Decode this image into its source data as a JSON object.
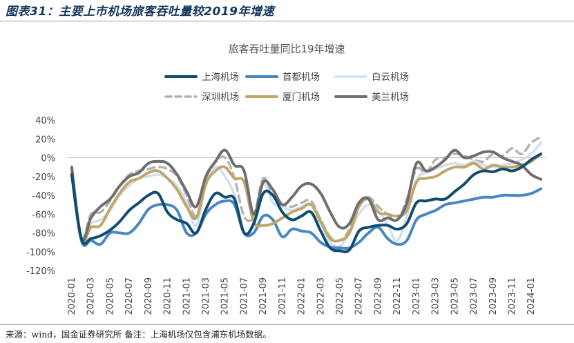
{
  "figure_title": "图表31：主要上市机场旅客吞吐量较2019年增速",
  "footer": "来源：wind，国金证券研究所   备注：上海机场仅包含浦东机场数据。",
  "chart_data": {
    "type": "line",
    "title": "旅客吞吐量同比19年增速",
    "ylim": [
      -120,
      40
    ],
    "y_ticks": [
      "40%",
      "20%",
      "0%",
      "-20%",
      "-40%",
      "-60%",
      "-80%",
      "-100%",
      "-120%"
    ],
    "x_ticks": [
      "2020-01",
      "2020-03",
      "2020-05",
      "2020-07",
      "2020-09",
      "2020-11",
      "2021-01",
      "2021-03",
      "2021-05",
      "2021-07",
      "2021-09",
      "2021-11",
      "2022-01",
      "2022-03",
      "2022-05",
      "2022-07",
      "2022-09",
      "2022-11",
      "2023-01",
      "2023-03",
      "2023-05",
      "2023-07",
      "2023-09",
      "2023-11",
      "2024-01"
    ],
    "x": [
      "2020-01",
      "2020-02",
      "2020-03",
      "2020-04",
      "2020-05",
      "2020-06",
      "2020-07",
      "2020-08",
      "2020-09",
      "2020-10",
      "2020-11",
      "2020-12",
      "2021-01",
      "2021-02",
      "2021-03",
      "2021-04",
      "2021-05",
      "2021-06",
      "2021-07",
      "2021-08",
      "2021-09",
      "2021-10",
      "2021-11",
      "2021-12",
      "2022-01",
      "2022-02",
      "2022-03",
      "2022-04",
      "2022-05",
      "2022-06",
      "2022-07",
      "2022-08",
      "2022-09",
      "2022-10",
      "2022-11",
      "2022-12",
      "2023-01",
      "2023-02",
      "2023-03",
      "2023-04",
      "2023-05",
      "2023-06",
      "2023-07",
      "2023-08",
      "2023-09",
      "2023-10",
      "2023-11",
      "2023-12",
      "2024-01",
      "2024-02"
    ],
    "series": [
      {
        "name": "上海机场",
        "color": "#0f4c6f",
        "dash": "",
        "width": 4,
        "values": [
          -18,
          -86,
          -86,
          -83,
          -77,
          -68,
          -56,
          -48,
          -40,
          -38,
          -58,
          -66,
          -70,
          -80,
          -55,
          -38,
          -42,
          -44,
          -80,
          -70,
          -38,
          -40,
          -58,
          -66,
          -62,
          -58,
          -78,
          -96,
          -99,
          -98,
          -78,
          -74,
          -72,
          -72,
          -76,
          -70,
          -48,
          -46,
          -44,
          -44,
          -36,
          -28,
          -18,
          -14,
          -15,
          -12,
          -14,
          -10,
          -2,
          4
        ]
      },
      {
        "name": "首都机场",
        "color": "#4a86c5",
        "dash": "",
        "width": 4,
        "values": [
          -18,
          -88,
          -88,
          -92,
          -80,
          -80,
          -80,
          -70,
          -55,
          -50,
          -50,
          -56,
          -80,
          -80,
          -60,
          -50,
          -46,
          -50,
          -80,
          -80,
          -62,
          -66,
          -84,
          -76,
          -78,
          -80,
          -90,
          -95,
          -96,
          -96,
          -90,
          -80,
          -74,
          -86,
          -92,
          -88,
          -66,
          -60,
          -56,
          -50,
          -48,
          -46,
          -44,
          -42,
          -42,
          -40,
          -40,
          -40,
          -38,
          -33
        ]
      },
      {
        "name": "白云机场",
        "color": "#cfe0f1",
        "dash": "",
        "width": 3.5,
        "values": [
          -15,
          -85,
          -70,
          -66,
          -56,
          -40,
          -30,
          -22,
          -20,
          -18,
          -22,
          -30,
          -48,
          -72,
          -30,
          -10,
          -20,
          -40,
          -78,
          -72,
          -28,
          -48,
          -52,
          -56,
          -52,
          -50,
          -70,
          -90,
          -94,
          -80,
          -60,
          -50,
          -56,
          -72,
          -88,
          -62,
          -24,
          -16,
          -12,
          -8,
          -6,
          -8,
          -4,
          -8,
          -10,
          -8,
          -6,
          -2,
          4,
          16
        ]
      },
      {
        "name": "深圳机场",
        "color": "#b3b3b3",
        "dash": "10,7",
        "width": 3.5,
        "values": [
          -10,
          -84,
          -60,
          -58,
          -46,
          -30,
          -18,
          -14,
          -12,
          -10,
          -12,
          -20,
          -40,
          -62,
          -25,
          -5,
          0,
          -22,
          -62,
          -62,
          -22,
          -40,
          -50,
          -52,
          -48,
          -46,
          -66,
          -84,
          -88,
          -76,
          -48,
          -42,
          -52,
          -60,
          -66,
          -44,
          -12,
          -16,
          -2,
          0,
          4,
          2,
          -2,
          -4,
          4,
          2,
          10,
          4,
          16,
          22
        ]
      },
      {
        "name": "厦门机场",
        "color": "#c3a56a",
        "dash": "",
        "width": 4,
        "values": [
          -12,
          -86,
          -74,
          -72,
          -54,
          -38,
          -26,
          -22,
          -16,
          -14,
          -22,
          -34,
          -52,
          -64,
          -28,
          -14,
          -10,
          -22,
          -26,
          -68,
          -72,
          -70,
          -64,
          -58,
          -54,
          -50,
          -68,
          -86,
          -88,
          -80,
          -52,
          -44,
          -58,
          -60,
          -62,
          -56,
          -26,
          -22,
          -20,
          -14,
          -10,
          -10,
          -6,
          -12,
          -8,
          -10,
          -10,
          -8,
          -4,
          4
        ]
      },
      {
        "name": "美兰机场",
        "color": "#6e6e6e",
        "dash": "",
        "width": 4,
        "values": [
          -10,
          -86,
          -64,
          -52,
          -44,
          -30,
          -20,
          -16,
          -6,
          -4,
          -6,
          -18,
          -36,
          -52,
          -20,
          -4,
          8,
          -8,
          -14,
          -60,
          -26,
          -34,
          -50,
          -42,
          -30,
          -28,
          -38,
          -58,
          -74,
          -70,
          -48,
          -44,
          -66,
          -64,
          -66,
          -48,
          -6,
          -14,
          -10,
          -2,
          8,
          0,
          2,
          6,
          6,
          0,
          -4,
          -8,
          -18,
          -23
        ]
      }
    ],
    "legend_placement": "top"
  }
}
